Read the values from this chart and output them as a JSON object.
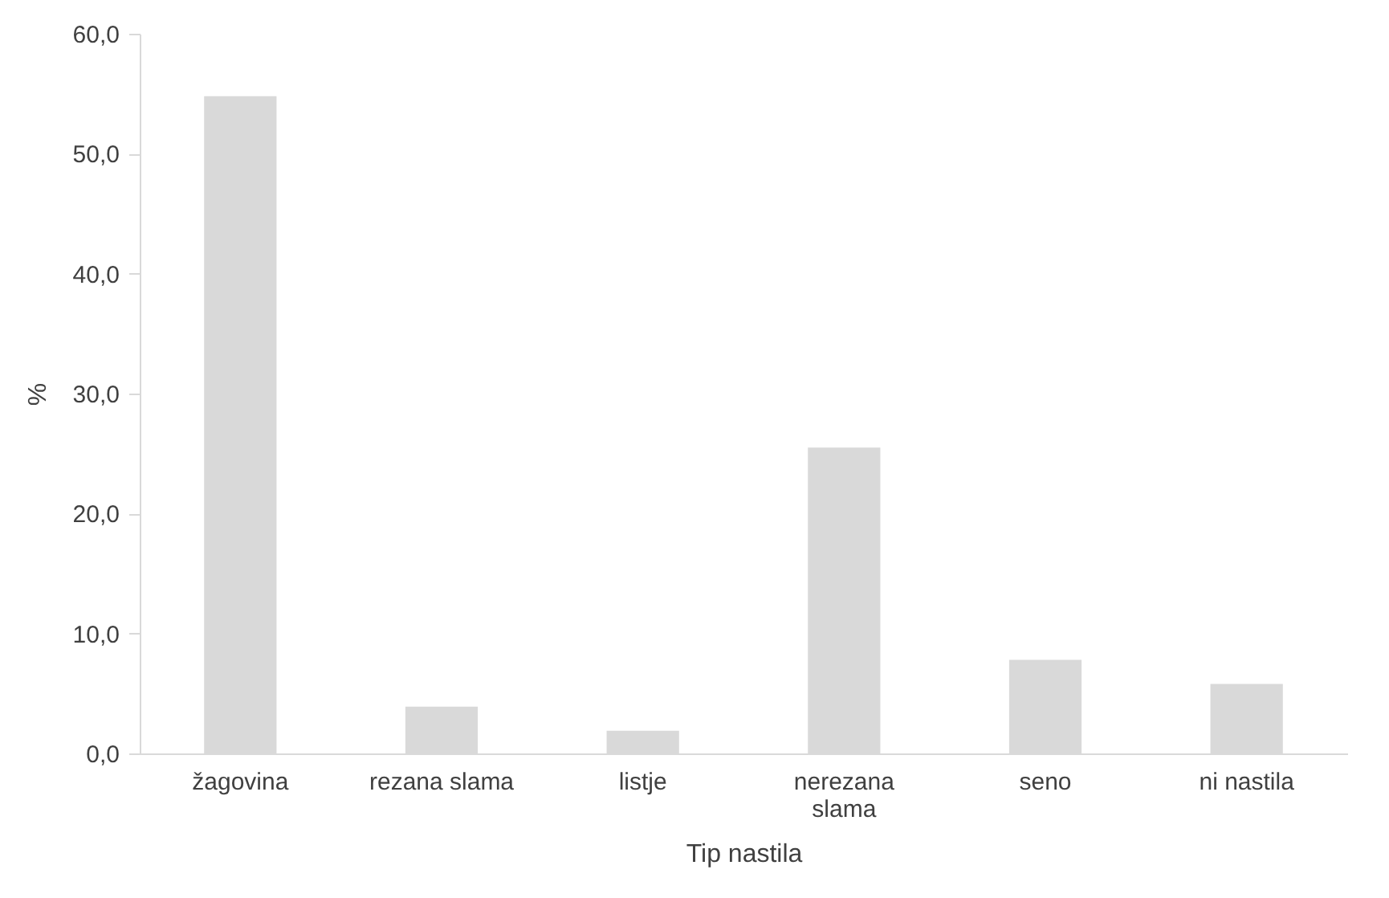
{
  "chart_data": {
    "type": "bar",
    "xlabel": "Tip nastila",
    "ylabel": "%",
    "categories": [
      "žagovina",
      "rezana slama",
      "listje",
      "nerezana slama",
      "seno",
      "ni nastila"
    ],
    "values": [
      54.8,
      3.9,
      1.9,
      25.5,
      7.8,
      5.8
    ],
    "color": "#d9d9d9",
    "ylim": [
      0,
      60
    ],
    "yticks": [
      {
        "value": 0,
        "label": "0,0"
      },
      {
        "value": 10,
        "label": "10,0"
      },
      {
        "value": 20,
        "label": "20,0"
      },
      {
        "value": 30,
        "label": "30,0"
      },
      {
        "value": 40,
        "label": "40,0"
      },
      {
        "value": 50,
        "label": "50,0"
      },
      {
        "value": 60,
        "label": "60,0"
      }
    ],
    "grid": false
  }
}
